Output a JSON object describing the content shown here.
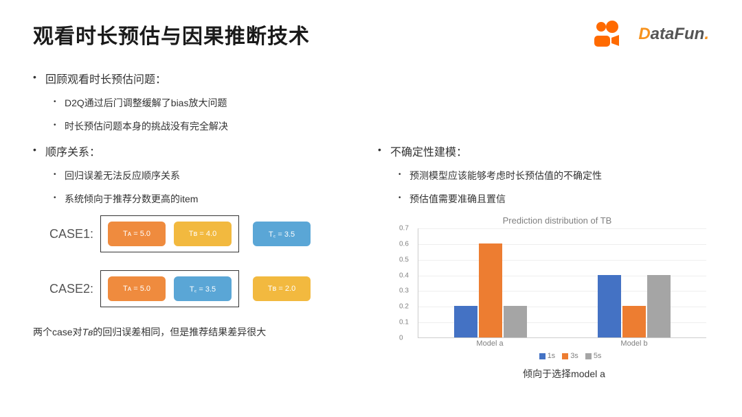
{
  "title": "观看时长预估与因果推断技术",
  "logos": {
    "kuaishou_color": "#ff6a00",
    "datafun_prefix": "D",
    "datafun_rest": "ataFun",
    "datafun_dot": "."
  },
  "section1": {
    "heading": "回顾观看时长预估问题：",
    "sub": [
      "D2Q通过后门调整缓解了bias放大问题",
      "时长预估问题本身的挑战没有完全解决"
    ]
  },
  "left": {
    "heading": "顺序关系：",
    "sub": [
      "回归误差无法反应顺序关系",
      "系统倾向于推荐分数更高的item"
    ],
    "case1_label": "CASE1:",
    "case2_label": "CASE2:",
    "chips": {
      "orange": "#ef8b3e",
      "yellow": "#f2b93f",
      "blue": "#5aa6d6",
      "TA": "Tᴀ = 5.0",
      "TB4": "Tʙ = 4.0",
      "TC": "T꜀ = 3.5",
      "TB2": "Tʙ = 2.0"
    },
    "footnote_pre": "两个case对",
    "footnote_sub": "Tʙ",
    "footnote_post": "的回归误差相同，但是推荐结果差异很大"
  },
  "right": {
    "heading": "不确定性建模：",
    "sub": [
      "预测模型应该能够考虑时长预估值的不确定性",
      "预估值需要准确且置信"
    ],
    "chart": {
      "title": "Prediction distribution of TB",
      "ylim": [
        0,
        0.7
      ],
      "ytick_step": 0.1,
      "yticks": [
        "0",
        "0.1",
        "0.2",
        "0.3",
        "0.4",
        "0.5",
        "0.6",
        "0.7"
      ],
      "categories": [
        "Model a",
        "Model b"
      ],
      "series": [
        {
          "name": "1s",
          "color": "#4472c4",
          "values": [
            0.2,
            0.4
          ]
        },
        {
          "name": "3s",
          "color": "#ed7d31",
          "values": [
            0.6,
            0.2
          ]
        },
        {
          "name": "5s",
          "color": "#a5a5a5",
          "values": [
            0.2,
            0.4
          ]
        }
      ],
      "grid_color": "#eeeeee",
      "axis_color": "#cccccc"
    },
    "footnote": "倾向于选择model a"
  }
}
